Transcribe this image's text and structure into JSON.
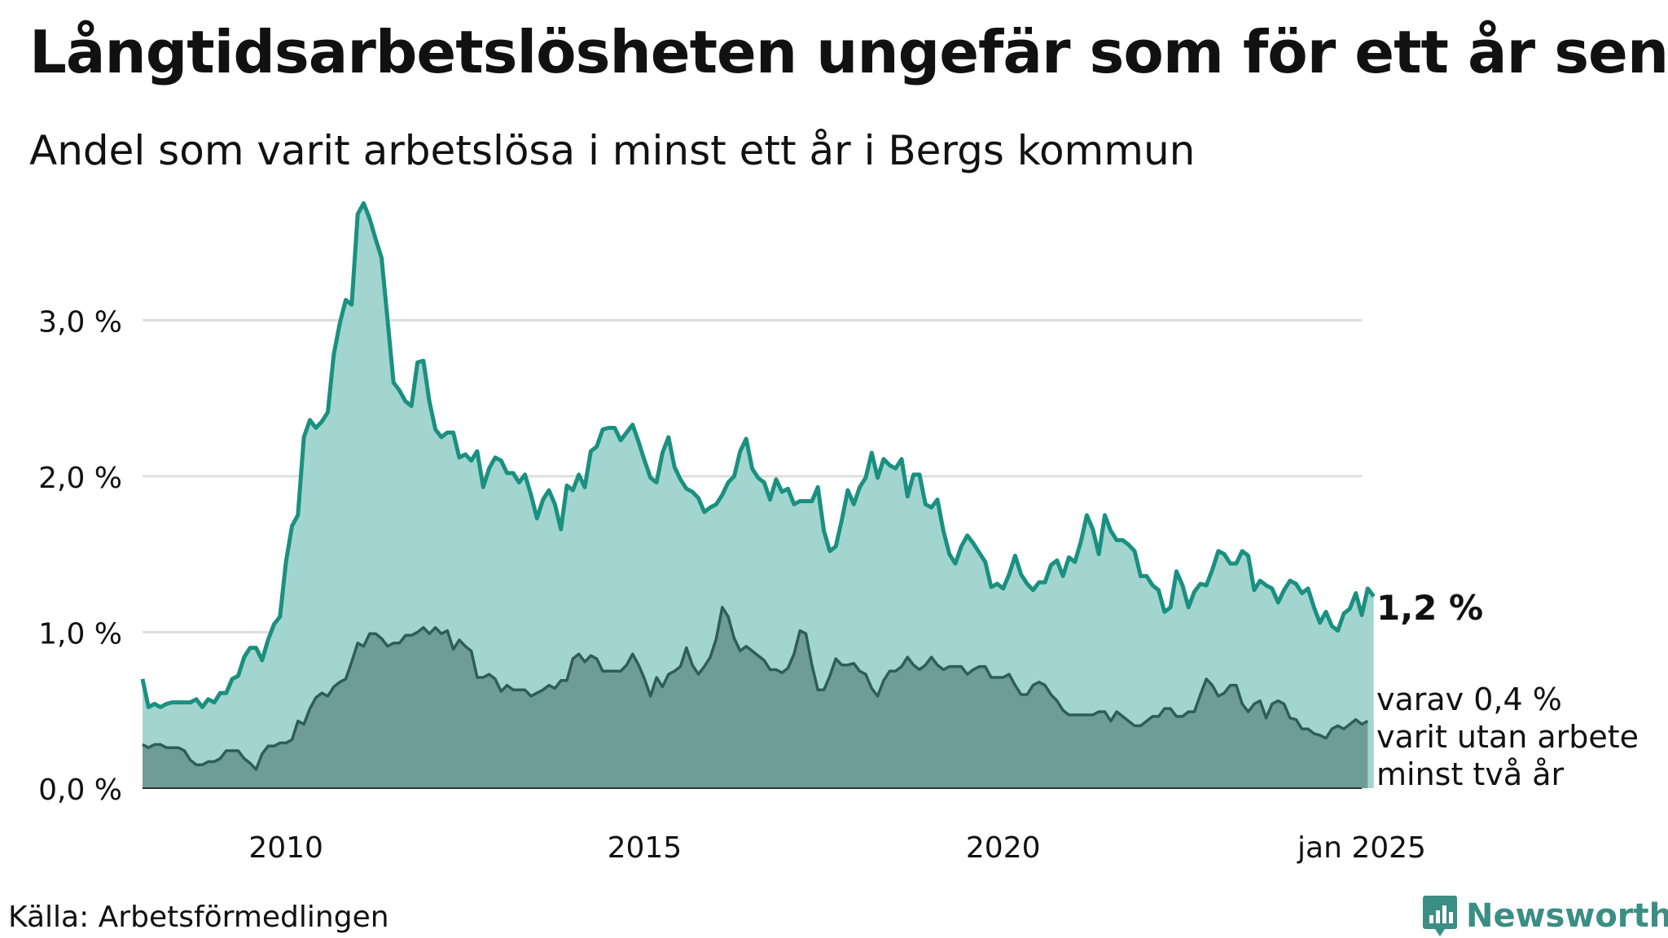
{
  "title": "Långtidsarbetslösheten ungefär som för ett år sen",
  "subtitle": "Andel som varit arbetslösa i minst ett år i Bergs kommun",
  "source": "Källa: Arbetsförmedlingen",
  "logo_text": "Newsworthy",
  "end_label_main": "1,2 %",
  "end_label_sub": [
    "varav 0,4 %",
    "varit utan arbete",
    "minst två år"
  ],
  "colors": {
    "main_line": "#1a9080",
    "main_fill": "#a2d5cf",
    "sub_line": "#2f5d58",
    "sub_fill": "#6f9c96",
    "grid": "#dddddd",
    "logo": "#3a8e84"
  },
  "chart_data": {
    "type": "area",
    "x_start": "2008-01",
    "x_end": "2025-01",
    "x_step": "month",
    "xticks": [
      {
        "x": 2010.0,
        "label": "2010"
      },
      {
        "x": 2015.0,
        "label": "2015"
      },
      {
        "x": 2020.0,
        "label": "2020"
      },
      {
        "x": 2025.0,
        "label": "jan 2025"
      }
    ],
    "yticks": [
      {
        "y": 0,
        "label": "0,0 %"
      },
      {
        "y": 1,
        "label": "1,0 %"
      },
      {
        "y": 2,
        "label": "2,0 %"
      },
      {
        "y": 3,
        "label": "3,0 %"
      }
    ],
    "ylim": [
      0,
      3.8
    ],
    "grid": true,
    "series": [
      {
        "name": "Minst ett år",
        "values": [
          0.7,
          0.52,
          0.54,
          0.52,
          0.54,
          0.55,
          0.55,
          0.55,
          0.55,
          0.57,
          0.52,
          0.57,
          0.55,
          0.61,
          0.61,
          0.7,
          0.72,
          0.84,
          0.9,
          0.9,
          0.82,
          0.95,
          1.05,
          1.1,
          1.45,
          1.68,
          1.75,
          2.25,
          2.36,
          2.31,
          2.35,
          2.41,
          2.78,
          2.98,
          3.13,
          3.1,
          3.68,
          3.75,
          3.65,
          3.52,
          3.4,
          3.0,
          2.6,
          2.55,
          2.48,
          2.45,
          2.73,
          2.74,
          2.48,
          2.3,
          2.25,
          2.28,
          2.28,
          2.12,
          2.14,
          2.1,
          2.16,
          1.93,
          2.05,
          2.12,
          2.1,
          2.02,
          2.02,
          1.96,
          2.01,
          1.88,
          1.73,
          1.85,
          1.91,
          1.82,
          1.66,
          1.94,
          1.91,
          2.01,
          1.93,
          2.16,
          2.19,
          2.3,
          2.31,
          2.31,
          2.23,
          2.28,
          2.33,
          2.22,
          2.1,
          1.99,
          1.96,
          2.15,
          2.25,
          2.06,
          1.98,
          1.92,
          1.9,
          1.86,
          1.77,
          1.8,
          1.82,
          1.88,
          1.96,
          2.0,
          2.16,
          2.24,
          2.05,
          1.99,
          1.96,
          1.85,
          1.98,
          1.9,
          1.92,
          1.82,
          1.84,
          1.84,
          1.84,
          1.93,
          1.65,
          1.52,
          1.55,
          1.72,
          1.91,
          1.82,
          1.93,
          1.99,
          2.15,
          1.99,
          2.11,
          2.07,
          2.05,
          2.11,
          1.87,
          2.01,
          2.01,
          1.82,
          1.8,
          1.85,
          1.65,
          1.5,
          1.44,
          1.55,
          1.62,
          1.57,
          1.51,
          1.45,
          1.29,
          1.31,
          1.28,
          1.37,
          1.49,
          1.37,
          1.31,
          1.27,
          1.32,
          1.32,
          1.43,
          1.46,
          1.36,
          1.48,
          1.45,
          1.58,
          1.75,
          1.66,
          1.5,
          1.75,
          1.65,
          1.59,
          1.59,
          1.56,
          1.52,
          1.36,
          1.36,
          1.3,
          1.27,
          1.13,
          1.16,
          1.39,
          1.3,
          1.16,
          1.26,
          1.31,
          1.3,
          1.4,
          1.52,
          1.5,
          1.44,
          1.44,
          1.52,
          1.49,
          1.27,
          1.33,
          1.3,
          1.28,
          1.19,
          1.27,
          1.33,
          1.31,
          1.25,
          1.28,
          1.16,
          1.06,
          1.13,
          1.04,
          1.01,
          1.12,
          1.15,
          1.25,
          1.11,
          1.28,
          1.23
        ]
      },
      {
        "name": "Minst två år",
        "values": [
          0.28,
          0.26,
          0.28,
          0.28,
          0.26,
          0.26,
          0.26,
          0.24,
          0.18,
          0.15,
          0.15,
          0.17,
          0.17,
          0.19,
          0.24,
          0.24,
          0.24,
          0.19,
          0.16,
          0.12,
          0.22,
          0.27,
          0.27,
          0.29,
          0.29,
          0.31,
          0.43,
          0.41,
          0.51,
          0.58,
          0.61,
          0.59,
          0.65,
          0.68,
          0.7,
          0.81,
          0.93,
          0.91,
          0.99,
          0.99,
          0.96,
          0.91,
          0.93,
          0.93,
          0.98,
          0.98,
          1.0,
          1.03,
          0.99,
          1.03,
          0.99,
          1.01,
          0.89,
          0.95,
          0.91,
          0.88,
          0.71,
          0.71,
          0.73,
          0.7,
          0.62,
          0.66,
          0.63,
          0.63,
          0.63,
          0.59,
          0.61,
          0.63,
          0.66,
          0.64,
          0.69,
          0.69,
          0.83,
          0.86,
          0.81,
          0.85,
          0.83,
          0.75,
          0.75,
          0.75,
          0.75,
          0.79,
          0.86,
          0.79,
          0.7,
          0.59,
          0.71,
          0.65,
          0.73,
          0.75,
          0.78,
          0.9,
          0.79,
          0.73,
          0.78,
          0.84,
          0.96,
          1.16,
          1.1,
          0.96,
          0.88,
          0.91,
          0.88,
          0.85,
          0.82,
          0.76,
          0.76,
          0.74,
          0.77,
          0.86,
          1.01,
          0.99,
          0.79,
          0.63,
          0.63,
          0.72,
          0.83,
          0.79,
          0.79,
          0.8,
          0.75,
          0.73,
          0.64,
          0.59,
          0.69,
          0.75,
          0.75,
          0.78,
          0.84,
          0.79,
          0.76,
          0.79,
          0.84,
          0.79,
          0.76,
          0.78,
          0.78,
          0.78,
          0.73,
          0.76,
          0.78,
          0.78,
          0.71,
          0.71,
          0.71,
          0.73,
          0.66,
          0.6,
          0.6,
          0.66,
          0.68,
          0.66,
          0.6,
          0.56,
          0.5,
          0.47,
          0.47,
          0.47,
          0.47,
          0.47,
          0.49,
          0.49,
          0.43,
          0.49,
          0.46,
          0.43,
          0.4,
          0.4,
          0.43,
          0.46,
          0.46,
          0.51,
          0.51,
          0.46,
          0.46,
          0.49,
          0.49,
          0.6,
          0.7,
          0.66,
          0.59,
          0.61,
          0.66,
          0.66,
          0.54,
          0.49,
          0.54,
          0.56,
          0.45,
          0.54,
          0.56,
          0.54,
          0.45,
          0.44,
          0.38,
          0.38,
          0.35,
          0.34,
          0.32,
          0.38,
          0.4,
          0.38,
          0.41,
          0.44,
          0.41,
          0.43
        ]
      }
    ]
  }
}
